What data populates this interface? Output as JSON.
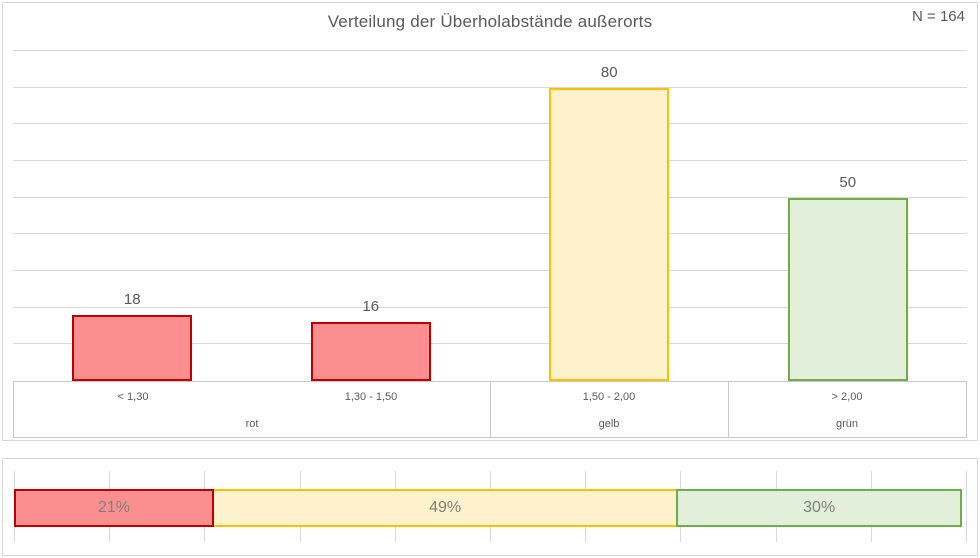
{
  "top_chart": {
    "title": "Verteilung der Überholabstände außerorts",
    "sample_size_label": "N = 164"
  },
  "chart_data": [
    {
      "type": "bar",
      "title": "Verteilung der Überholabstände außerorts",
      "annotation": "N = 164",
      "categories": [
        "< 1,30",
        "1,30 - 1,50",
        "1,50 - 2,00",
        "> 2,00"
      ],
      "values": [
        18,
        16,
        80,
        50
      ],
      "data_labels": [
        "18",
        "16",
        "80",
        "50"
      ],
      "group_labels": [
        {
          "label": "rot",
          "span": 2
        },
        {
          "label": "gelb",
          "span": 1
        },
        {
          "label": "grün",
          "span": 1
        }
      ],
      "bar_colors": [
        {
          "fill": "#FB8F8F",
          "border": "#C00000"
        },
        {
          "fill": "#FB8F8F",
          "border": "#C00000"
        },
        {
          "fill": "#FDF2CC",
          "border": "#FFC000"
        },
        {
          "fill": "#E2EFDA",
          "border": "#70AD47"
        }
      ],
      "xlabel": "",
      "ylabel": "",
      "ylim": [
        0,
        90
      ],
      "gridline_step": 10,
      "legend": "none",
      "grid": "horizontal gridlines, no value-axis labels"
    },
    {
      "type": "bar",
      "subtype": "stacked-horizontal-percentage",
      "title": "",
      "segments": [
        {
          "label": "21%",
          "value": 21,
          "fill": "#FB8F8F",
          "border": "#C00000",
          "z": 3
        },
        {
          "label": "49%",
          "value": 49,
          "fill": "#FDF2CC",
          "border": "#FFC000",
          "z": 1
        },
        {
          "label": "30%",
          "value": 30,
          "fill": "#E2EFDA",
          "border": "#70AD47",
          "z": 2
        }
      ],
      "xlim": [
        0,
        100
      ],
      "gridline_step": 10,
      "legend": "none",
      "grid": "vertical gridlines, no axis labels"
    }
  ],
  "colors": {
    "text": "#595959",
    "percent_label_text": "#7F7F7F",
    "gridline": "#D9D9D9",
    "axis_line": "#C9C9C9",
    "chart_border": "#D7D7D7",
    "background": "#FFFFFF"
  }
}
